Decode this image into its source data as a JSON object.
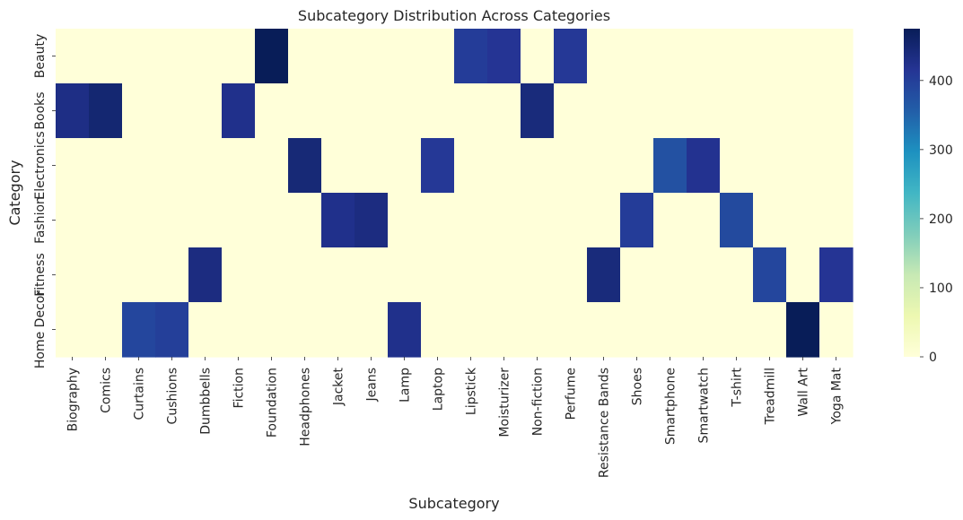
{
  "chart_data": {
    "type": "heatmap",
    "title": "Subcategory Distribution Across Categories",
    "xlabel": "Subcategory",
    "ylabel": "Category",
    "rows": [
      "Beauty",
      "Books",
      "Electronics",
      "Fashion",
      "Fitness",
      "Home Decor"
    ],
    "columns": [
      "Biography",
      "Comics",
      "Curtains",
      "Cushions",
      "Dumbbells",
      "Fiction",
      "Foundation",
      "Headphones",
      "Jacket",
      "Jeans",
      "Lamp",
      "Laptop",
      "Lipstick",
      "Moisturizer",
      "Non-fiction",
      "Perfume",
      "Resistance Bands",
      "Shoes",
      "Smartphone",
      "Smartwatch",
      "T-shirt",
      "Treadmill",
      "Wall Art",
      "Yoga Mat"
    ],
    "values": [
      [
        0,
        0,
        0,
        0,
        0,
        0,
        475,
        0,
        0,
        0,
        0,
        0,
        405,
        415,
        0,
        410,
        0,
        0,
        0,
        0,
        0,
        0,
        0,
        0
      ],
      [
        430,
        450,
        0,
        0,
        0,
        425,
        0,
        0,
        0,
        0,
        0,
        0,
        0,
        0,
        440,
        0,
        0,
        0,
        0,
        0,
        0,
        0,
        0,
        0
      ],
      [
        0,
        0,
        0,
        0,
        0,
        0,
        0,
        445,
        0,
        0,
        0,
        410,
        0,
        0,
        0,
        0,
        0,
        0,
        375,
        420,
        0,
        0,
        0,
        0
      ],
      [
        0,
        0,
        0,
        0,
        0,
        0,
        0,
        0,
        425,
        435,
        0,
        0,
        0,
        0,
        0,
        0,
        0,
        405,
        0,
        0,
        385,
        0,
        0,
        0
      ],
      [
        0,
        0,
        0,
        0,
        435,
        0,
        0,
        0,
        0,
        0,
        0,
        0,
        0,
        0,
        0,
        0,
        440,
        0,
        0,
        0,
        0,
        390,
        0,
        415
      ],
      [
        0,
        0,
        390,
        400,
        0,
        0,
        0,
        0,
        0,
        0,
        425,
        0,
        0,
        0,
        0,
        0,
        0,
        0,
        0,
        0,
        0,
        0,
        475,
        0
      ]
    ],
    "colorbar": {
      "ticks": [
        0,
        100,
        200,
        300,
        400
      ],
      "vmin": 0,
      "vmax": 475,
      "colormap": "YlGnBu"
    },
    "grid": false
  }
}
